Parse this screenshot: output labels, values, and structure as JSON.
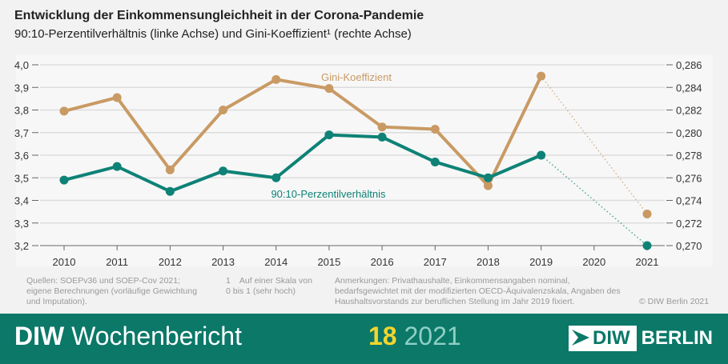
{
  "chart_data": {
    "type": "line",
    "title": "Entwicklung der Einkommensungleichheit in der Corona-Pandemie",
    "subtitle": "90:10-Perzentilverhältnis (linke Achse) und Gini-Koeffizient¹ (rechte Achse)",
    "categories": [
      "2010",
      "2011",
      "2012",
      "2013",
      "2014",
      "2015",
      "2016",
      "2017",
      "2018",
      "2019",
      "2020",
      "2021"
    ],
    "y_left": {
      "ylim": [
        3.2,
        4.0
      ],
      "ticks": [
        "3,2",
        "3,3",
        "3,4",
        "3,5",
        "3,6",
        "3,7",
        "3,8",
        "3,9",
        "4,0"
      ]
    },
    "y_right": {
      "ylim": [
        0.27,
        0.286
      ],
      "ticks": [
        "0,270",
        "0,272",
        "0,274",
        "0,276",
        "0,278",
        "0,280",
        "0,282",
        "0,284",
        "0,286"
      ]
    },
    "grid": true,
    "series": [
      {
        "name": "Gini-Koeffizient",
        "axis": "right",
        "color": "#c99a64",
        "values": [
          0.2819,
          0.2831,
          0.2767,
          0.282,
          0.2847,
          0.2839,
          0.2805,
          0.2803,
          0.2753,
          0.285,
          null,
          0.2728
        ],
        "dotted_to_last": true
      },
      {
        "name": "90:10-Perzentilverhältnis",
        "axis": "left",
        "color": "#0e8276",
        "values": [
          3.49,
          3.55,
          3.44,
          3.53,
          3.5,
          3.69,
          3.68,
          3.57,
          3.5,
          3.6,
          null,
          3.2
        ],
        "dotted_to_last": true
      }
    ]
  },
  "notes": {
    "sources": "Quellen: SOEPv36 und SOEP-Cov 2021; eigene Berechnungen (vorläufige Gewichtung und Imputation).",
    "footnote": "1    Auf einer Skala von 0 bis 1 (sehr hoch)",
    "remarks": "Anmerkungen: Privathaushalte, Einkommensangaben nominal, bedarfsgewichtet mit der modifizierten OECD-Äquivalenzskala, Angaben des Haushaltsvorstands zur beruflichen Stellung im Jahr 2019 fixiert.",
    "copyright": "© DIW Berlin 2021"
  },
  "footer": {
    "brand_bold": "DIW",
    "brand": "Wochenbericht",
    "issue_number": "18",
    "issue_year": "2021",
    "logo_box": "DIW",
    "logo_text": "BERLIN"
  }
}
